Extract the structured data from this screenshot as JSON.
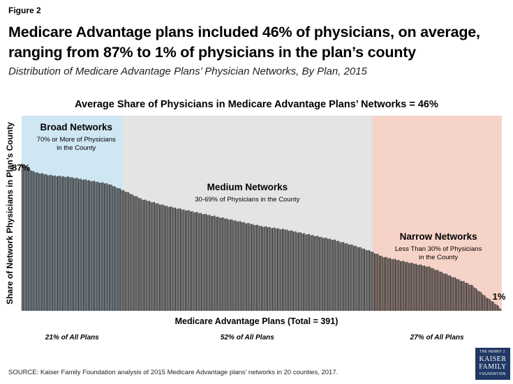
{
  "figure_label": "Figure 2",
  "headline": "Medicare Advantage plans included 46% of physicians, on average, ranging from 87% to 1% of physicians in the plan’s county",
  "subtitle": "Distribution of Medicare Advantage Plans’ Physician Networks, By Plan, 2015",
  "source": "SOURCE: Kaiser Family Foundation analysis of 2015 Medicare Advantage plans’ networks in 20 counties, 2017.",
  "logo": {
    "line1": "THE HENRY J.",
    "line2": "KAISER",
    "line3": "FAMILY",
    "line4": "FOUNDATION"
  },
  "colors": {
    "bar": "#1a1a1a",
    "broad_band": "#cfe6f3",
    "medium_band": "#e4e4e4",
    "narrow_band": "#f6d3c8"
  },
  "chart_data": {
    "type": "bar",
    "title": "Average Share of Physicians in Medicare Advantage Plans’ Networks = 46%",
    "xlabel": "Medicare Advantage Plans (Total = 391)",
    "ylabel": "Share of Network Physicians in Plan’s County",
    "ylim": [
      0,
      100
    ],
    "n_plans": 391,
    "max_value": 87,
    "min_value": 1,
    "average": 46,
    "max_label": "87%",
    "min_label": "1%",
    "profile": [
      [
        0,
        87
      ],
      [
        0.025,
        82
      ],
      [
        0.06,
        80
      ],
      [
        0.1,
        79
      ],
      [
        0.14,
        77
      ],
      [
        0.18,
        75
      ],
      [
        0.213,
        71
      ],
      [
        0.25,
        66
      ],
      [
        0.3,
        62
      ],
      [
        0.35,
        59
      ],
      [
        0.4,
        56
      ],
      [
        0.45,
        53
      ],
      [
        0.5,
        50
      ],
      [
        0.55,
        48
      ],
      [
        0.6,
        45
      ],
      [
        0.65,
        42
      ],
      [
        0.7,
        38
      ],
      [
        0.73,
        35
      ],
      [
        0.753,
        32
      ],
      [
        0.8,
        29
      ],
      [
        0.85,
        26
      ],
      [
        0.9,
        20
      ],
      [
        0.94,
        15
      ],
      [
        0.97,
        8
      ],
      [
        0.99,
        4
      ],
      [
        1.0,
        1
      ]
    ],
    "segments": [
      {
        "name": "Broad Networks",
        "description": "70% or More of Physicians in the County",
        "share_label": "21% of All Plans",
        "share_pct": 21
      },
      {
        "name": "Medium Networks",
        "description": "30-69% of Physicians in the County",
        "share_label": "52% of All Plans",
        "share_pct": 52
      },
      {
        "name": "Narrow Networks",
        "description": "Less Than 30% of Physicians in the County",
        "share_label": "27% of All Plans",
        "share_pct": 27
      }
    ]
  }
}
